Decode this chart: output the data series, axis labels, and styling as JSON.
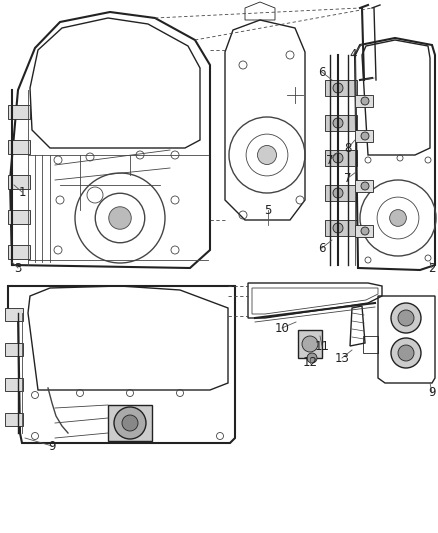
{
  "background_color": "#ffffff",
  "figsize": [
    4.38,
    5.33
  ],
  "dpi": 100,
  "image_data": ""
}
